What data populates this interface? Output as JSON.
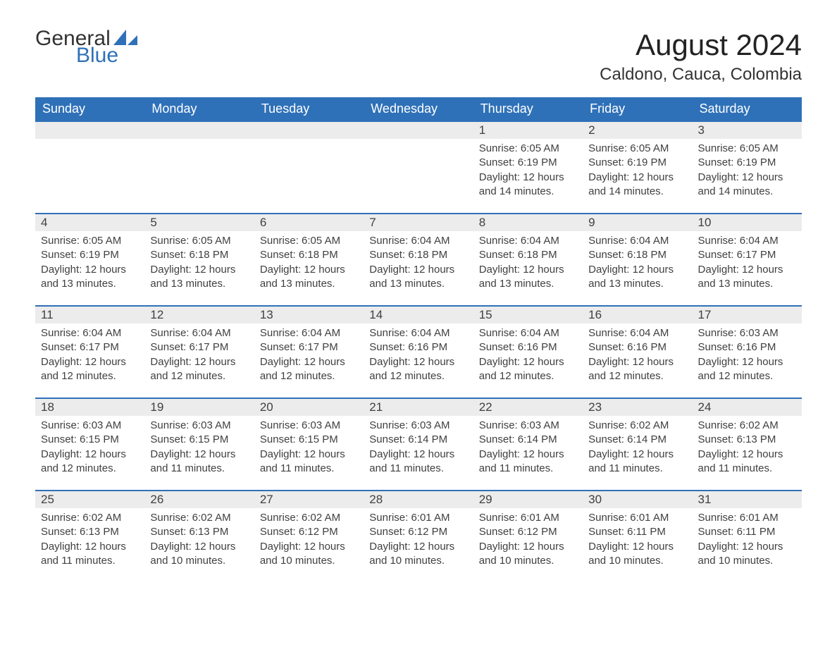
{
  "brand": {
    "general": "General",
    "blue": "Blue",
    "accent_color": "#2f71b8"
  },
  "title": "August 2024",
  "subtitle": "Caldono, Cauca, Colombia",
  "colors": {
    "header_bg": "#2f71b8",
    "header_text": "#ffffff",
    "daynum_bg": "#ececec",
    "day_border": "#2f71b8",
    "body_text": "#404040",
    "page_bg": "#ffffff"
  },
  "day_headers": [
    "Sunday",
    "Monday",
    "Tuesday",
    "Wednesday",
    "Thursday",
    "Friday",
    "Saturday"
  ],
  "weeks": [
    [
      null,
      null,
      null,
      null,
      {
        "n": "1",
        "sunrise": "Sunrise: 6:05 AM",
        "sunset": "Sunset: 6:19 PM",
        "day1": "Daylight: 12 hours",
        "day2": "and 14 minutes."
      },
      {
        "n": "2",
        "sunrise": "Sunrise: 6:05 AM",
        "sunset": "Sunset: 6:19 PM",
        "day1": "Daylight: 12 hours",
        "day2": "and 14 minutes."
      },
      {
        "n": "3",
        "sunrise": "Sunrise: 6:05 AM",
        "sunset": "Sunset: 6:19 PM",
        "day1": "Daylight: 12 hours",
        "day2": "and 14 minutes."
      }
    ],
    [
      {
        "n": "4",
        "sunrise": "Sunrise: 6:05 AM",
        "sunset": "Sunset: 6:19 PM",
        "day1": "Daylight: 12 hours",
        "day2": "and 13 minutes."
      },
      {
        "n": "5",
        "sunrise": "Sunrise: 6:05 AM",
        "sunset": "Sunset: 6:18 PM",
        "day1": "Daylight: 12 hours",
        "day2": "and 13 minutes."
      },
      {
        "n": "6",
        "sunrise": "Sunrise: 6:05 AM",
        "sunset": "Sunset: 6:18 PM",
        "day1": "Daylight: 12 hours",
        "day2": "and 13 minutes."
      },
      {
        "n": "7",
        "sunrise": "Sunrise: 6:04 AM",
        "sunset": "Sunset: 6:18 PM",
        "day1": "Daylight: 12 hours",
        "day2": "and 13 minutes."
      },
      {
        "n": "8",
        "sunrise": "Sunrise: 6:04 AM",
        "sunset": "Sunset: 6:18 PM",
        "day1": "Daylight: 12 hours",
        "day2": "and 13 minutes."
      },
      {
        "n": "9",
        "sunrise": "Sunrise: 6:04 AM",
        "sunset": "Sunset: 6:18 PM",
        "day1": "Daylight: 12 hours",
        "day2": "and 13 minutes."
      },
      {
        "n": "10",
        "sunrise": "Sunrise: 6:04 AM",
        "sunset": "Sunset: 6:17 PM",
        "day1": "Daylight: 12 hours",
        "day2": "and 13 minutes."
      }
    ],
    [
      {
        "n": "11",
        "sunrise": "Sunrise: 6:04 AM",
        "sunset": "Sunset: 6:17 PM",
        "day1": "Daylight: 12 hours",
        "day2": "and 12 minutes."
      },
      {
        "n": "12",
        "sunrise": "Sunrise: 6:04 AM",
        "sunset": "Sunset: 6:17 PM",
        "day1": "Daylight: 12 hours",
        "day2": "and 12 minutes."
      },
      {
        "n": "13",
        "sunrise": "Sunrise: 6:04 AM",
        "sunset": "Sunset: 6:17 PM",
        "day1": "Daylight: 12 hours",
        "day2": "and 12 minutes."
      },
      {
        "n": "14",
        "sunrise": "Sunrise: 6:04 AM",
        "sunset": "Sunset: 6:16 PM",
        "day1": "Daylight: 12 hours",
        "day2": "and 12 minutes."
      },
      {
        "n": "15",
        "sunrise": "Sunrise: 6:04 AM",
        "sunset": "Sunset: 6:16 PM",
        "day1": "Daylight: 12 hours",
        "day2": "and 12 minutes."
      },
      {
        "n": "16",
        "sunrise": "Sunrise: 6:04 AM",
        "sunset": "Sunset: 6:16 PM",
        "day1": "Daylight: 12 hours",
        "day2": "and 12 minutes."
      },
      {
        "n": "17",
        "sunrise": "Sunrise: 6:03 AM",
        "sunset": "Sunset: 6:16 PM",
        "day1": "Daylight: 12 hours",
        "day2": "and 12 minutes."
      }
    ],
    [
      {
        "n": "18",
        "sunrise": "Sunrise: 6:03 AM",
        "sunset": "Sunset: 6:15 PM",
        "day1": "Daylight: 12 hours",
        "day2": "and 12 minutes."
      },
      {
        "n": "19",
        "sunrise": "Sunrise: 6:03 AM",
        "sunset": "Sunset: 6:15 PM",
        "day1": "Daylight: 12 hours",
        "day2": "and 11 minutes."
      },
      {
        "n": "20",
        "sunrise": "Sunrise: 6:03 AM",
        "sunset": "Sunset: 6:15 PM",
        "day1": "Daylight: 12 hours",
        "day2": "and 11 minutes."
      },
      {
        "n": "21",
        "sunrise": "Sunrise: 6:03 AM",
        "sunset": "Sunset: 6:14 PM",
        "day1": "Daylight: 12 hours",
        "day2": "and 11 minutes."
      },
      {
        "n": "22",
        "sunrise": "Sunrise: 6:03 AM",
        "sunset": "Sunset: 6:14 PM",
        "day1": "Daylight: 12 hours",
        "day2": "and 11 minutes."
      },
      {
        "n": "23",
        "sunrise": "Sunrise: 6:02 AM",
        "sunset": "Sunset: 6:14 PM",
        "day1": "Daylight: 12 hours",
        "day2": "and 11 minutes."
      },
      {
        "n": "24",
        "sunrise": "Sunrise: 6:02 AM",
        "sunset": "Sunset: 6:13 PM",
        "day1": "Daylight: 12 hours",
        "day2": "and 11 minutes."
      }
    ],
    [
      {
        "n": "25",
        "sunrise": "Sunrise: 6:02 AM",
        "sunset": "Sunset: 6:13 PM",
        "day1": "Daylight: 12 hours",
        "day2": "and 11 minutes."
      },
      {
        "n": "26",
        "sunrise": "Sunrise: 6:02 AM",
        "sunset": "Sunset: 6:13 PM",
        "day1": "Daylight: 12 hours",
        "day2": "and 10 minutes."
      },
      {
        "n": "27",
        "sunrise": "Sunrise: 6:02 AM",
        "sunset": "Sunset: 6:12 PM",
        "day1": "Daylight: 12 hours",
        "day2": "and 10 minutes."
      },
      {
        "n": "28",
        "sunrise": "Sunrise: 6:01 AM",
        "sunset": "Sunset: 6:12 PM",
        "day1": "Daylight: 12 hours",
        "day2": "and 10 minutes."
      },
      {
        "n": "29",
        "sunrise": "Sunrise: 6:01 AM",
        "sunset": "Sunset: 6:12 PM",
        "day1": "Daylight: 12 hours",
        "day2": "and 10 minutes."
      },
      {
        "n": "30",
        "sunrise": "Sunrise: 6:01 AM",
        "sunset": "Sunset: 6:11 PM",
        "day1": "Daylight: 12 hours",
        "day2": "and 10 minutes."
      },
      {
        "n": "31",
        "sunrise": "Sunrise: 6:01 AM",
        "sunset": "Sunset: 6:11 PM",
        "day1": "Daylight: 12 hours",
        "day2": "and 10 minutes."
      }
    ]
  ]
}
